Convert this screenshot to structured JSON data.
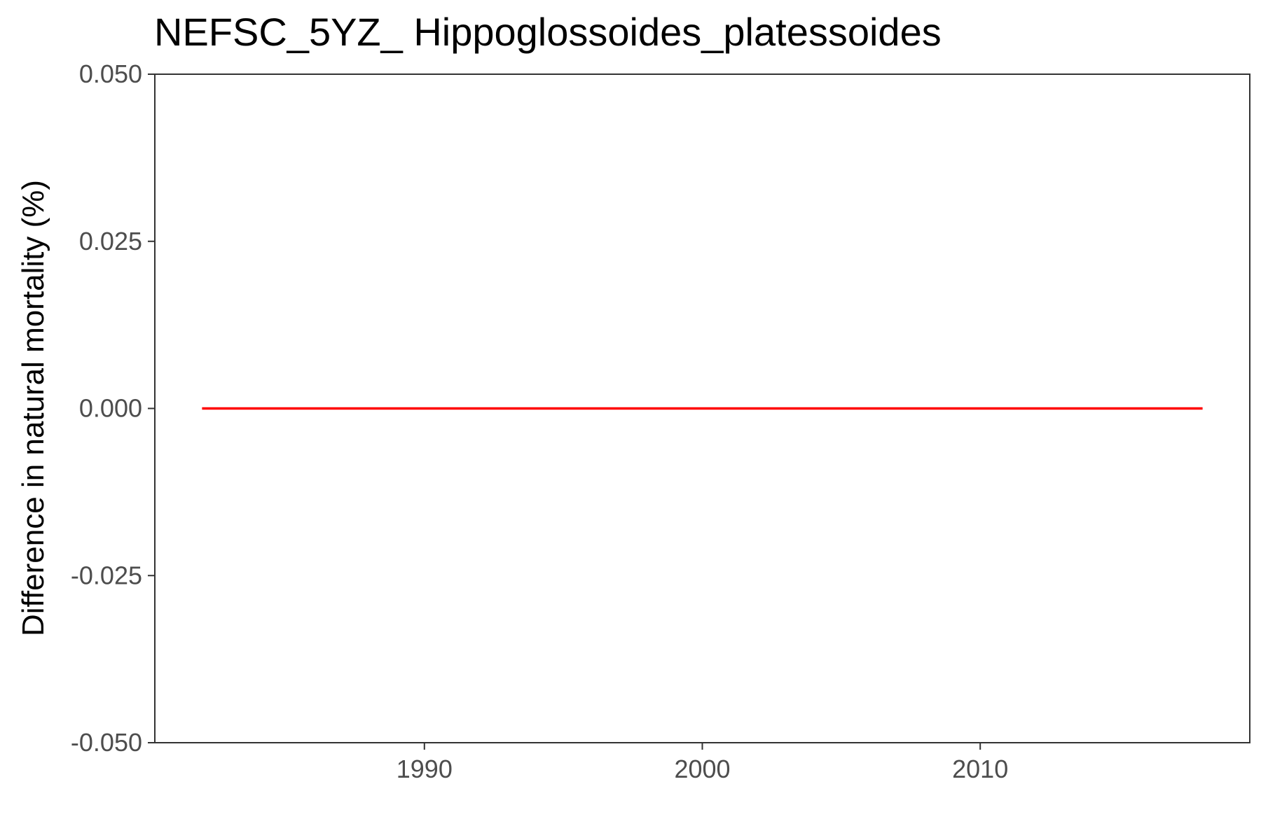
{
  "chart_data": {
    "type": "line",
    "title": "NEFSC_5YZ_ Hippoglossoides_platessoides",
    "xlabel": "",
    "ylabel": "Difference in natural mortality (%)",
    "xlim": [
      1980.3,
      2019.7
    ],
    "ylim": [
      -0.05,
      0.05
    ],
    "x_ticks": [
      1990,
      2000,
      2010
    ],
    "y_ticks": [
      -0.05,
      -0.025,
      0,
      0.025,
      0.05
    ],
    "y_tick_labels": [
      "-0.050",
      "-0.025",
      "0.000",
      "0.025",
      "0.050"
    ],
    "x_tick_labels": [
      "1990",
      "2000",
      "2010"
    ],
    "grid": false,
    "series": [
      {
        "color": "#ff0000",
        "x": [
          1982,
          1983,
          1984,
          1985,
          1986,
          1987,
          1988,
          1989,
          1990,
          1991,
          1992,
          1993,
          1994,
          1995,
          1996,
          1997,
          1998,
          1999,
          2000,
          2001,
          2002,
          2003,
          2004,
          2005,
          2006,
          2007,
          2008,
          2009,
          2010,
          2011,
          2012,
          2013,
          2014,
          2015,
          2016,
          2017,
          2018
        ],
        "values": [
          0,
          0,
          0,
          0,
          0,
          0,
          0,
          0,
          0,
          0,
          0,
          0,
          0,
          0,
          0,
          0,
          0,
          0,
          0,
          0,
          0,
          0,
          0,
          0,
          0,
          0,
          0,
          0,
          0,
          0,
          0,
          0,
          0,
          0,
          0,
          0,
          0
        ]
      }
    ]
  }
}
